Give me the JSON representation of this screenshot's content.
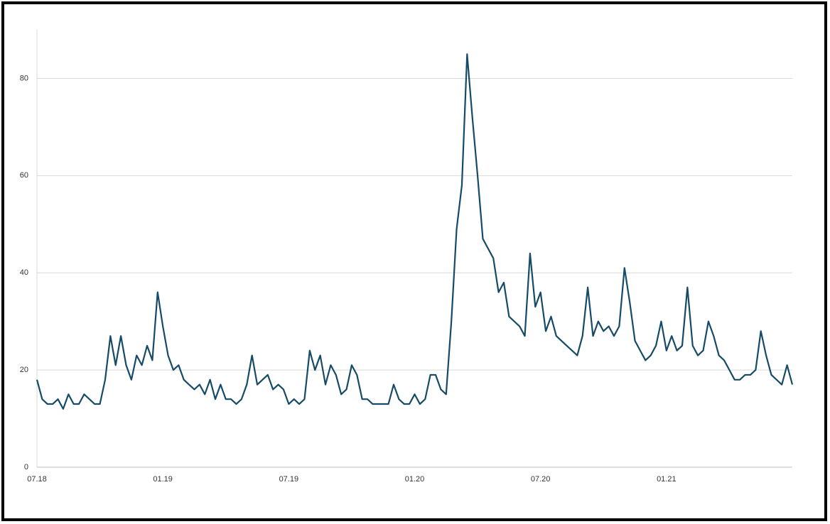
{
  "chart_data": {
    "type": "line",
    "categories": [
      "07.18",
      null,
      null,
      null,
      null,
      null,
      null,
      null,
      null,
      null,
      null,
      null,
      null,
      null,
      null,
      null,
      null,
      null,
      null,
      null,
      null,
      null,
      null,
      null,
      "01.19",
      null,
      null,
      null,
      null,
      null,
      null,
      null,
      null,
      null,
      null,
      null,
      null,
      null,
      null,
      null,
      null,
      null,
      null,
      null,
      null,
      null,
      null,
      null,
      "07.19",
      null,
      null,
      null,
      null,
      null,
      null,
      null,
      null,
      null,
      null,
      null,
      null,
      null,
      null,
      null,
      null,
      null,
      null,
      null,
      null,
      null,
      null,
      null,
      "01.20",
      null,
      null,
      null,
      null,
      null,
      null,
      null,
      null,
      null,
      null,
      null,
      null,
      null,
      null,
      null,
      null,
      null,
      null,
      null,
      null,
      null,
      null,
      null,
      "07.20",
      null,
      null,
      null,
      null,
      null,
      null,
      null,
      null,
      null,
      null,
      null,
      null,
      null,
      null,
      null,
      null,
      null,
      null,
      null,
      null,
      null,
      null,
      null,
      "01.21",
      null,
      null,
      null,
      null,
      null,
      null,
      null,
      null,
      null,
      null,
      null,
      null,
      null,
      null,
      null,
      null,
      null,
      null,
      null,
      null,
      null,
      null,
      null,
      null
    ],
    "values": [
      18,
      14,
      13,
      13,
      14,
      12,
      15,
      13,
      13,
      15,
      14,
      13,
      13,
      18,
      27,
      21,
      27,
      21,
      18,
      23,
      21,
      25,
      22,
      36,
      29,
      23,
      20,
      21,
      18,
      17,
      16,
      17,
      15,
      18,
      14,
      17,
      14,
      14,
      13,
      14,
      17,
      23,
      17,
      18,
      19,
      16,
      17,
      16,
      13,
      14,
      13,
      14,
      24,
      20,
      23,
      17,
      21,
      19,
      15,
      16,
      21,
      19,
      14,
      14,
      13,
      13,
      13,
      13,
      17,
      14,
      13,
      13,
      15,
      13,
      14,
      19,
      19,
      16,
      15,
      30,
      49,
      58,
      85,
      72,
      60,
      47,
      45,
      43,
      36,
      38,
      31,
      30,
      29,
      27,
      44,
      33,
      36,
      28,
      31,
      27,
      26,
      25,
      24,
      23,
      27,
      37,
      27,
      30,
      28,
      29,
      27,
      29,
      41,
      34,
      26,
      24,
      22,
      23,
      25,
      30,
      24,
      27,
      24,
      25,
      37,
      25,
      23,
      24,
      30,
      27,
      23,
      22,
      20,
      18,
      18,
      19,
      19,
      20,
      28,
      23,
      19,
      18,
      17,
      21,
      17
    ],
    "color": "#164b67",
    "ylim": [
      0,
      90
    ],
    "yticks": [
      0,
      20,
      40,
      60,
      80
    ],
    "grid": true
  }
}
